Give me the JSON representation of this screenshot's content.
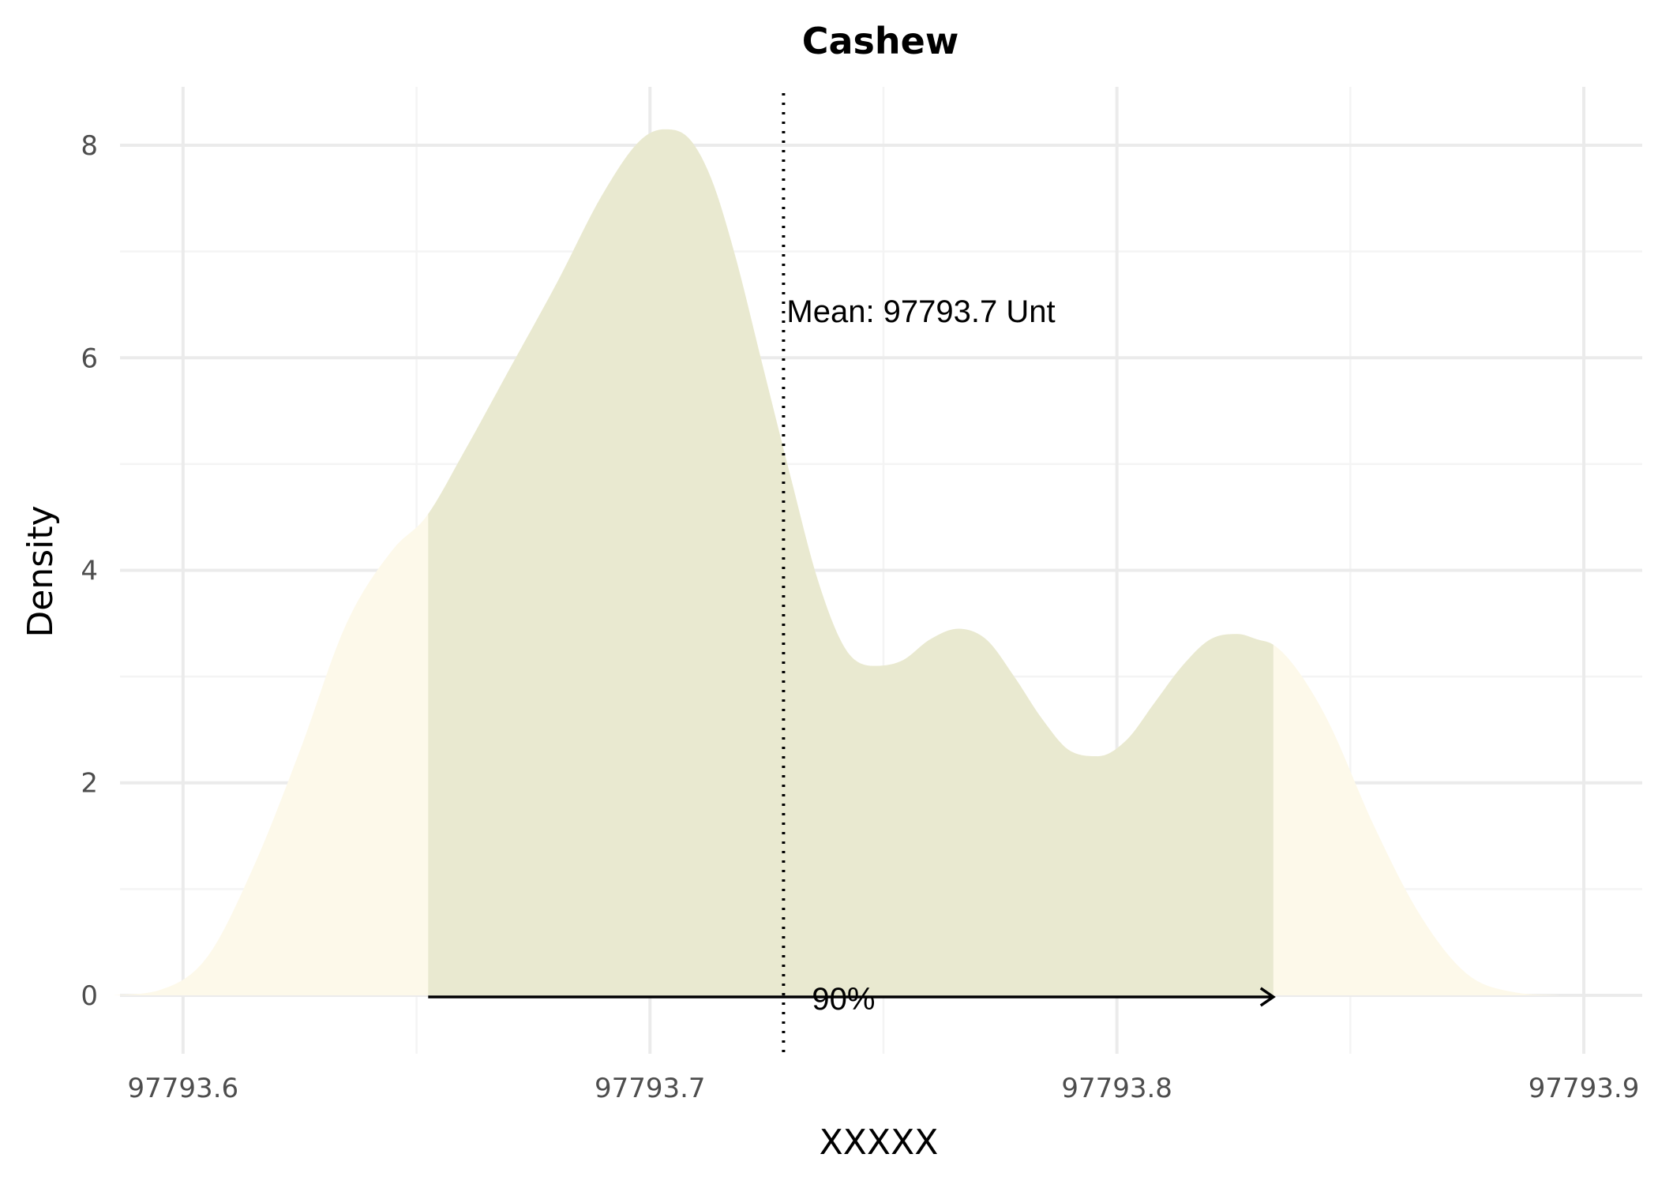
{
  "chart_data": {
    "type": "area",
    "title": "Cashew",
    "xlabel": "XXXXX",
    "ylabel": "Density",
    "xlim": [
      97793.5865,
      97793.9125
    ],
    "ylim": [
      -0.55,
      8.55
    ],
    "x_ticks": [
      "97793.6",
      "97793.7",
      "97793.8",
      "97793.9"
    ],
    "x_tick_values": [
      97793.6,
      97793.7,
      97793.8,
      97793.9
    ],
    "y_ticks": [
      "0",
      "2",
      "4",
      "6",
      "8"
    ],
    "y_tick_values": [
      0,
      2,
      4,
      6,
      8
    ],
    "grid": true,
    "colors": {
      "tail_fill": "#fdf9ea",
      "interval_fill": "#e9e9d0",
      "grid_major": "#ebebeb",
      "grid_minor": "#f4f4f4"
    },
    "series": [
      {
        "x": [
          97793.585,
          97793.595,
          97793.605,
          97793.615,
          97793.625,
          97793.635,
          97793.645,
          97793.652,
          97793.66,
          97793.67,
          97793.68,
          97793.69,
          97793.698,
          97793.703,
          97793.708,
          97793.713,
          97793.718,
          97793.724,
          97793.73,
          97793.736,
          97793.742,
          97793.748,
          97793.754,
          97793.76,
          97793.766,
          97793.772,
          97793.778,
          97793.784,
          97793.79,
          97793.796,
          97793.802,
          97793.808,
          97793.814,
          97793.82,
          97793.826,
          97793.83,
          97793.8335,
          97793.838,
          97793.845,
          97793.855,
          97793.865,
          97793.875,
          97793.885,
          97793.895
        ],
        "y": [
          0.0,
          0.05,
          0.35,
          1.2,
          2.3,
          3.5,
          4.2,
          4.5,
          5.1,
          5.9,
          6.7,
          7.55,
          8.05,
          8.15,
          8.08,
          7.7,
          7.0,
          5.95,
          4.9,
          3.9,
          3.25,
          3.1,
          3.15,
          3.35,
          3.45,
          3.35,
          3.0,
          2.6,
          2.3,
          2.25,
          2.4,
          2.75,
          3.1,
          3.35,
          3.4,
          3.35,
          3.3,
          3.1,
          2.6,
          1.6,
          0.75,
          0.2,
          0.03,
          0.0
        ]
      }
    ],
    "interval": {
      "from": 97793.6525,
      "to": 97793.8335,
      "label": "90%"
    },
    "mean": {
      "x": 97793.7286,
      "label": "Mean: 97793.7 Unt"
    }
  }
}
